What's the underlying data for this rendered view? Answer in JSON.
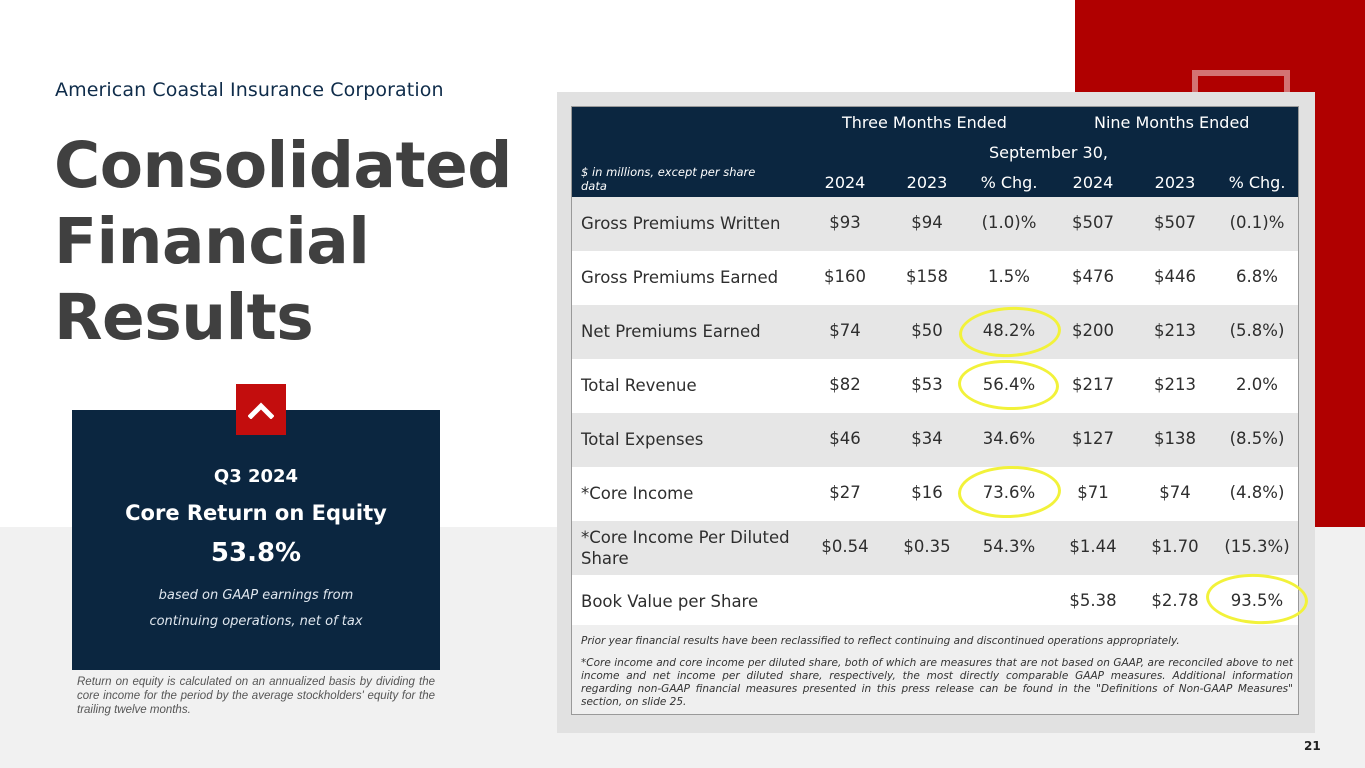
{
  "company": "American Coastal Insurance Corporation",
  "title": [
    "Consolidated",
    "Financial",
    "Results"
  ],
  "kpi": {
    "period": "Q3 2024",
    "label": "Core Return on Equity",
    "value": "53.8%",
    "note_line1": "based on GAAP earnings from",
    "note_line2": "continuing operations, net of tax",
    "icon": "chevron-up-icon"
  },
  "roe_note": "Return on equity is calculated on an annualized basis by dividing the core income for the period by the average stockholders' equity for the trailing twelve months.",
  "table": {
    "header_three": "Three Months Ended",
    "header_nine": "Nine Months Ended",
    "header_date": "September 30,",
    "unit_note": "$ in millions, except per share data",
    "columns": [
      "2024",
      "2023",
      "% Chg.",
      "2024",
      "2023",
      "% Chg."
    ],
    "rows": [
      {
        "label": "Gross Premiums Written",
        "values": [
          "$93",
          "$94",
          "(1.0)%",
          "$507",
          "$507",
          "(0.1)%"
        ]
      },
      {
        "label": "Gross Premiums Earned",
        "values": [
          "$160",
          "$158",
          "1.5%",
          "$476",
          "$446",
          "6.8%"
        ]
      },
      {
        "label": "Net Premiums Earned",
        "values": [
          "$74",
          "$50",
          "48.2%",
          "$200",
          "$213",
          "(5.8%)"
        ]
      },
      {
        "label": "Total Revenue",
        "values": [
          "$82",
          "$53",
          "56.4%",
          "$217",
          "$213",
          "2.0%"
        ]
      },
      {
        "label": "Total Expenses",
        "values": [
          "$46",
          "$34",
          "34.6%",
          "$127",
          "$138",
          "(8.5%)"
        ]
      },
      {
        "label": "*Core Income",
        "values": [
          "$27",
          "$16",
          "73.6%",
          "$71",
          "$74",
          "(4.8%)"
        ]
      },
      {
        "label": "*Core Income Per Diluted Share",
        "values": [
          "$0.54",
          "$0.35",
          "54.3%",
          "$1.44",
          "$1.70",
          "(15.3%)"
        ]
      },
      {
        "label": "Book Value per Share",
        "values": [
          "",
          "",
          "",
          "$5.38",
          "$2.78",
          "93.5%"
        ]
      }
    ],
    "footnote1": "Prior year financial results have been reclassified to reflect continuing and discontinued operations appropriately.",
    "footnote2": "*Core income and core income per diluted share, both of which are measures that are not based on GAAP, are reconciled above to net income and net income per diluted share, respectively, the most directly comparable GAAP measures. Additional information regarding non-GAAP financial measures presented in this press release can be found in the \"Definitions of Non-GAAP Measures\" section, on slide 25."
  },
  "colors": {
    "navy": "#0b2640",
    "red": "#b00000",
    "highlight": "#f2f23a"
  },
  "page_number": "21"
}
